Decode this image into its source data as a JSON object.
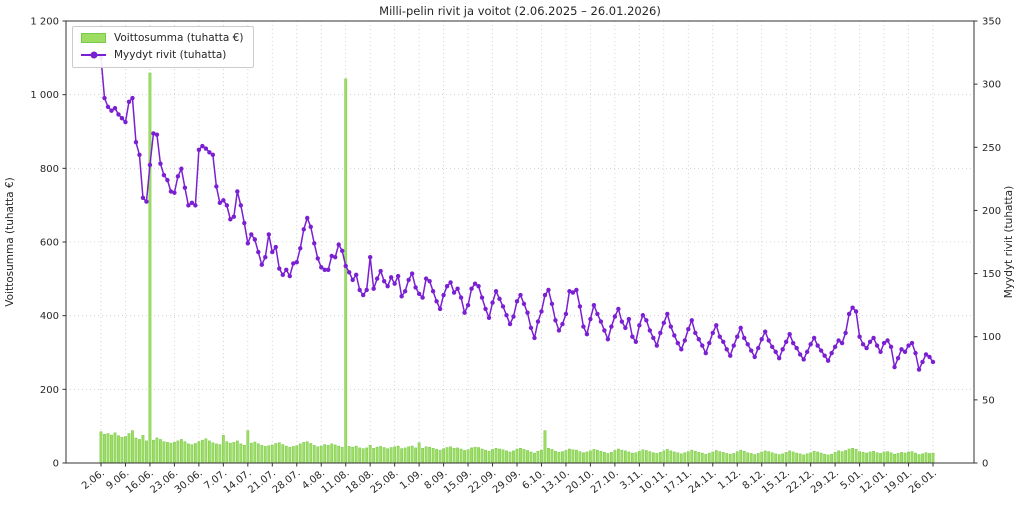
{
  "chart_data": {
    "type": "bar",
    "title": "Milli-pelin rivit ja voitot (2.06.2025 – 26.01.2026)",
    "start_date": "2.06.2025",
    "end_date": "26.01.2026",
    "ylabel_left": "Voittosumma (tuhatta €)",
    "ylabel_right": "Myydyt rivit (tuhatta)",
    "ylim_left": [
      0,
      1200
    ],
    "ylim_right": [
      0,
      350
    ],
    "yticks_left": [
      "0",
      "200",
      "400",
      "600",
      "800",
      "1 000",
      "1 200"
    ],
    "yticks_right": [
      "0",
      "50",
      "100",
      "150",
      "200",
      "250",
      "300",
      "350"
    ],
    "x_tick_labels": [
      "2.06.",
      "9.06.",
      "16.06.",
      "23.06.",
      "30.06.",
      "7.07.",
      "14.07.",
      "21.07.",
      "28.07.",
      "4.08.",
      "11.08.",
      "18.08.",
      "25.08.",
      "1.09.",
      "8.09.",
      "15.09.",
      "22.09.",
      "29.09.",
      "6.10.",
      "13.10.",
      "20.10.",
      "27.10.",
      "3.11.",
      "10.11.",
      "17.11.",
      "24.11.",
      "1.12.",
      "8.12.",
      "15.12.",
      "22.12.",
      "29.12.",
      "5.01.",
      "12.01.",
      "19.01.",
      "26.01."
    ],
    "grid": true,
    "legend_position": "upper left",
    "series": [
      {
        "name": "Voittosumma (tuhatta €)",
        "type": "bar",
        "axis": "left",
        "values": [
          85,
          78,
          80,
          76,
          82,
          74,
          70,
          72,
          80,
          88,
          68,
          64,
          75,
          60,
          1059,
          62,
          68,
          64,
          58,
          56,
          54,
          56,
          60,
          64,
          58,
          52,
          50,
          53,
          58,
          62,
          66,
          60,
          55,
          52,
          50,
          75,
          58,
          54,
          56,
          60,
          52,
          48,
          88,
          54,
          57,
          52,
          48,
          45,
          47,
          49,
          53,
          55,
          50,
          46,
          43,
          45,
          47,
          52,
          56,
          58,
          53,
          48,
          44,
          46,
          50,
          48,
          52,
          49,
          46,
          43,
          1043,
          45,
          43,
          46,
          41,
          39,
          41,
          48,
          40,
          43,
          45,
          42,
          39,
          42,
          44,
          46,
          39,
          41,
          44,
          46,
          41,
          55,
          40,
          44,
          43,
          40,
          37,
          35,
          39,
          42,
          44,
          40,
          41,
          38,
          34,
          36,
          41,
          43,
          42,
          38,
          35,
          32,
          37,
          40,
          38,
          36,
          33,
          30,
          33,
          38,
          40,
          37,
          34,
          30,
          27,
          32,
          35,
          88,
          40,
          37,
          32,
          29,
          31,
          34,
          38,
          36,
          35,
          31,
          28,
          30,
          33,
          37,
          35,
          32,
          29,
          26,
          29,
          34,
          38,
          35,
          33,
          30,
          27,
          28,
          32,
          36,
          34,
          31,
          28,
          26,
          29,
          33,
          37,
          33,
          30,
          28,
          25,
          28,
          31,
          35,
          32,
          29,
          27,
          24,
          27,
          30,
          34,
          31,
          29,
          26,
          24,
          26,
          31,
          35,
          32,
          28,
          26,
          23,
          26,
          30,
          33,
          31,
          28,
          25,
          23,
          25,
          29,
          33,
          30,
          27,
          25,
          22,
          25,
          28,
          32,
          30,
          27,
          24,
          22,
          24,
          29,
          33,
          31,
          34,
          38,
          40,
          37,
          31,
          29,
          27,
          30,
          32,
          28,
          26,
          30,
          31,
          28,
          24,
          26,
          29,
          27,
          30,
          31,
          27,
          23,
          25,
          28,
          26,
          27
        ]
      },
      {
        "name": "Myydyt rivit (tuhatta)",
        "type": "line",
        "axis": "right",
        "values": [
          321,
          289,
          282,
          279,
          281,
          276,
          273,
          270,
          286,
          289,
          254,
          244,
          210,
          207,
          236,
          261,
          260,
          237,
          228,
          224,
          215,
          214,
          227,
          233,
          218,
          204,
          206,
          204,
          248,
          251,
          249,
          246,
          244,
          219,
          206,
          208,
          204,
          193,
          195,
          215,
          204,
          190,
          174,
          181,
          177,
          167,
          157,
          163,
          181,
          167,
          171,
          154,
          149,
          153,
          148,
          158,
          159,
          170,
          185,
          194,
          187,
          174,
          162,
          155,
          153,
          153,
          164,
          163,
          173,
          168,
          156,
          151,
          145,
          149,
          137,
          133,
          137,
          163,
          138,
          146,
          152,
          144,
          140,
          147,
          142,
          148,
          132,
          136,
          145,
          150,
          139,
          134,
          131,
          146,
          144,
          136,
          128,
          122,
          133,
          140,
          143,
          135,
          138,
          131,
          119,
          125,
          138,
          142,
          140,
          131,
          122,
          115,
          127,
          136,
          130,
          124,
          117,
          110,
          116,
          128,
          133,
          126,
          119,
          107,
          99,
          112,
          120,
          133,
          137,
          126,
          113,
          105,
          110,
          118,
          136,
          135,
          137,
          124,
          108,
          102,
          114,
          125,
          118,
          112,
          105,
          98,
          108,
          116,
          122,
          112,
          107,
          114,
          100,
          96,
          109,
          117,
          113,
          105,
          99,
          93,
          103,
          111,
          118,
          108,
          101,
          95,
          90,
          97,
          106,
          113,
          103,
          98,
          93,
          87,
          95,
          103,
          109,
          100,
          96,
          90,
          85,
          93,
          100,
          107,
          99,
          94,
          89,
          84,
          91,
          98,
          104,
          97,
          92,
          88,
          83,
          90,
          96,
          102,
          95,
          91,
          86,
          82,
          88,
          94,
          99,
          93,
          89,
          85,
          81,
          87,
          92,
          97,
          95,
          103,
          118,
          123,
          120,
          100,
          94,
          91,
          96,
          99,
          93,
          88,
          95,
          97,
          92,
          76,
          83,
          90,
          88,
          93,
          95,
          87,
          74,
          80,
          86,
          84,
          80
        ]
      }
    ],
    "colors": {
      "bar_fill": "#9ddd62",
      "bar_edge": "#79c94c",
      "line": "#7a1fd1",
      "grid": "#c9c9c9",
      "spine": "#333333",
      "text": "#262626",
      "legend_border": "#cccccc"
    }
  }
}
